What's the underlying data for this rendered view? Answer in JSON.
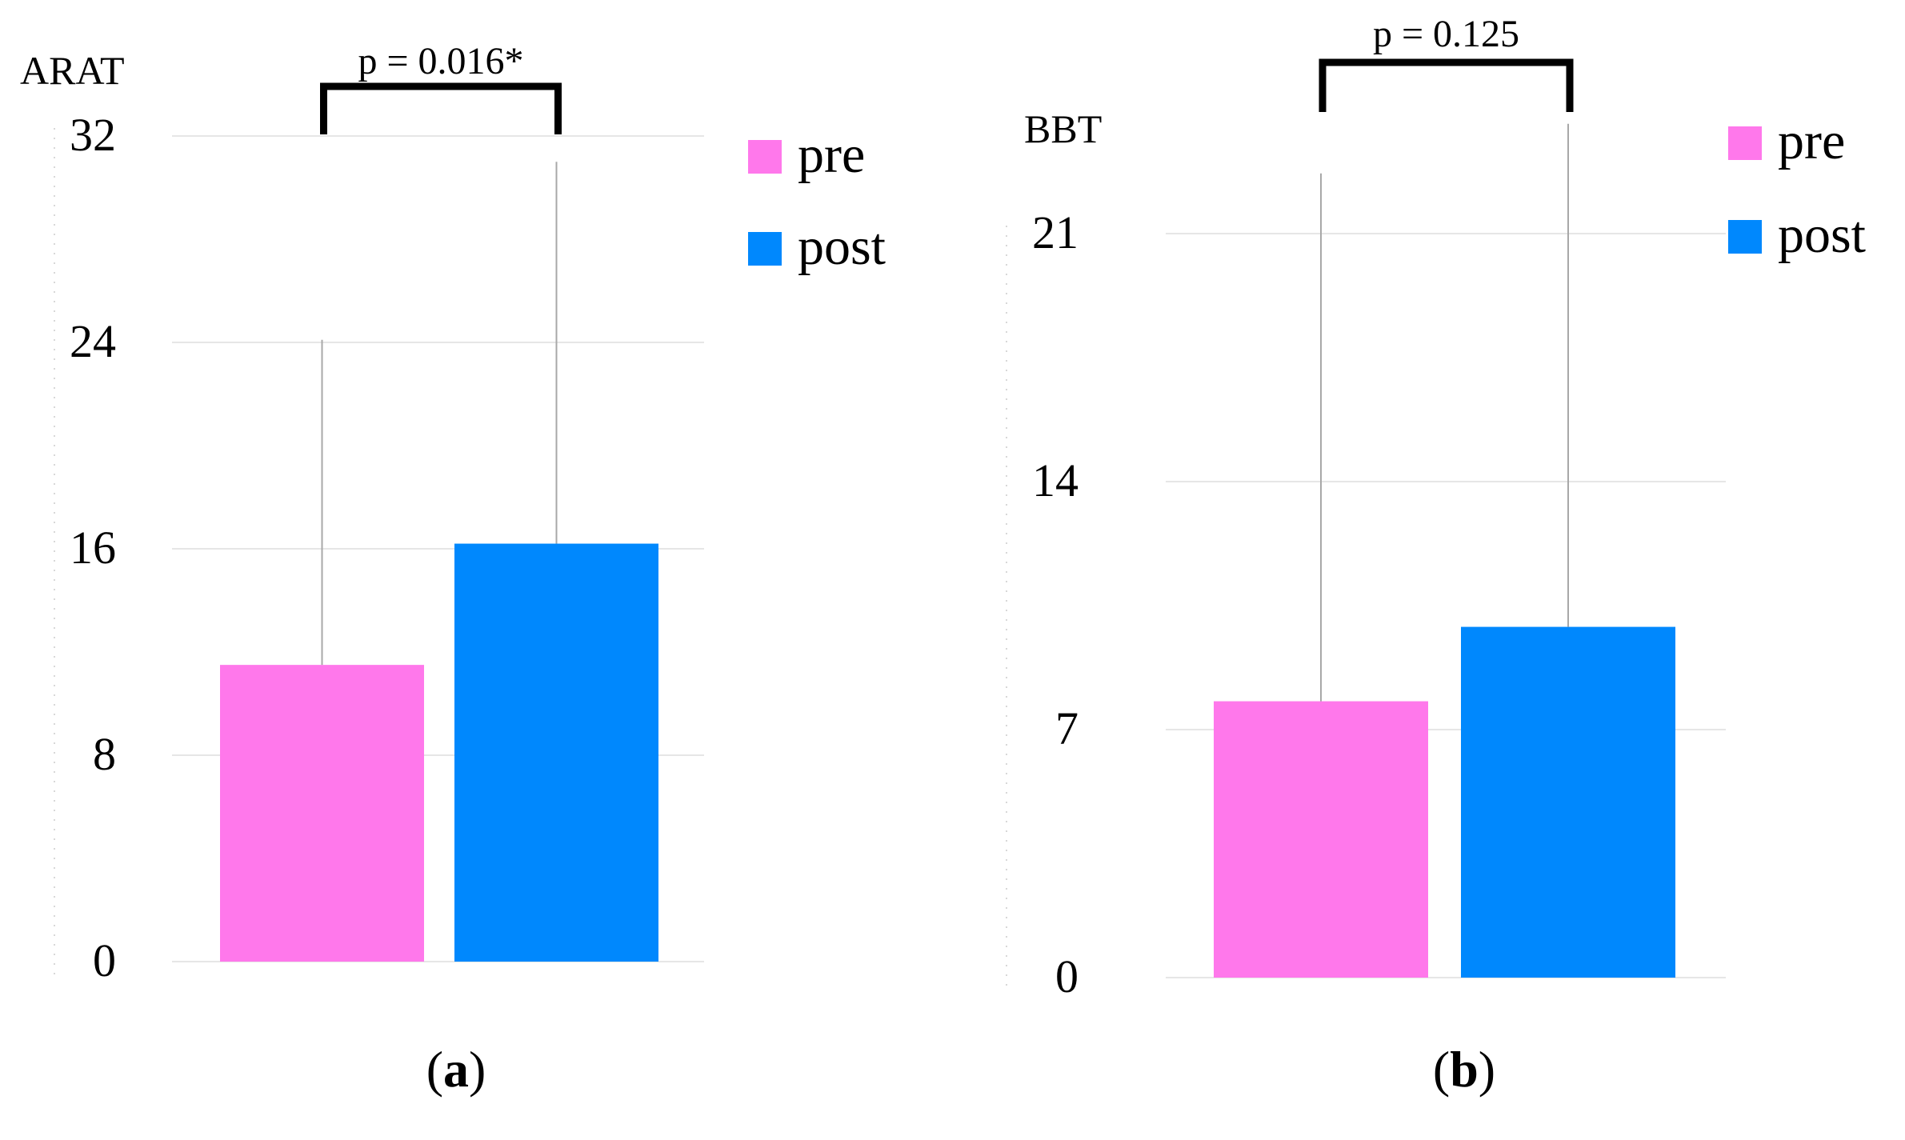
{
  "chart_data": [
    {
      "id": "a",
      "type": "bar",
      "ylabel": "ARAT",
      "ylim": [
        0,
        32
      ],
      "yticks": [
        0,
        8,
        16,
        24,
        32
      ],
      "grid": true,
      "series": [
        {
          "name": "pre",
          "value": 11.5,
          "error_upper": 24.1,
          "color": "#ff78eb"
        },
        {
          "name": "post",
          "value": 16.2,
          "error_upper": 31.0,
          "color": "#0088fd"
        }
      ],
      "annotation": {
        "text": "p = 0.016*"
      },
      "legend": {
        "placement": "top-right",
        "entries": [
          "pre",
          "post"
        ]
      },
      "caption": {
        "open": "(",
        "letter": "a",
        "close": ")"
      }
    },
    {
      "id": "b",
      "type": "bar",
      "ylabel": "BBT",
      "ylim": [
        0,
        21
      ],
      "yticks": [
        0,
        7,
        14,
        21
      ],
      "grid": true,
      "series": [
        {
          "name": "pre",
          "value": 7.8,
          "error_upper": 22.7,
          "color": "#ff78eb"
        },
        {
          "name": "post",
          "value": 9.9,
          "error_upper": 24.1,
          "color": "#0088fd"
        }
      ],
      "annotation": {
        "text": "p = 0.125"
      },
      "legend": {
        "placement": "top-right",
        "entries": [
          "pre",
          "post"
        ]
      },
      "caption": {
        "open": "(",
        "letter": "b",
        "close": ")"
      }
    }
  ]
}
